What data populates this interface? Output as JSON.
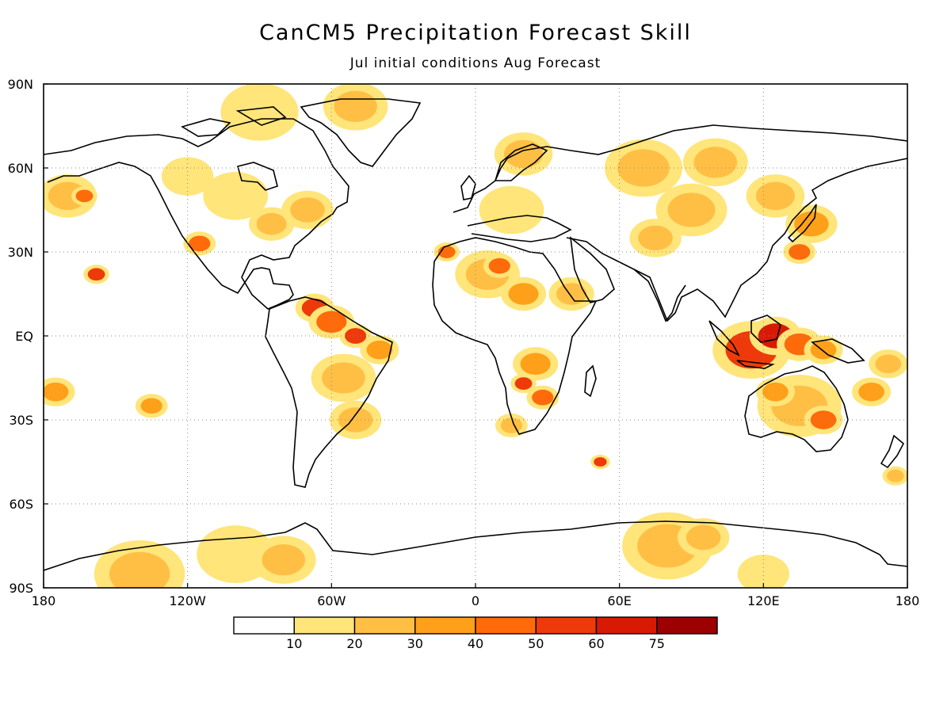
{
  "header": {
    "title": "CanCM5 Precipitation Forecast Skill",
    "subtitle": "Jul initial conditions   Aug Forecast"
  },
  "axes": {
    "lat_labels": [
      "90N",
      "60N",
      "30N",
      "EQ",
      "30S",
      "60S",
      "90S"
    ],
    "lon_labels": [
      "180",
      "120W",
      "60W",
      "0",
      "60E",
      "120E",
      "180"
    ]
  },
  "colorbar": {
    "colors": [
      "#ffffff",
      "#ffe57a",
      "#ffbf45",
      "#ffa01a",
      "#ff6b0a",
      "#ee3a0a",
      "#d81a05",
      "#9c0000"
    ],
    "labels": [
      "10",
      "20",
      "30",
      "40",
      "50",
      "60",
      "75"
    ]
  },
  "map_data": {
    "projection": "cylindrical-equidistant",
    "lon_range": [
      -180,
      180
    ],
    "lat_range": [
      -90,
      90
    ],
    "grid": true,
    "skill_blobs": [
      {
        "lon": -170,
        "lat": 50,
        "r": 9,
        "level": 1
      },
      {
        "lon": -163,
        "lat": 50,
        "r": 4,
        "level": 3
      },
      {
        "lon": -158,
        "lat": 22,
        "r": 4,
        "level": 4
      },
      {
        "lon": -175,
        "lat": -20,
        "r": 6,
        "level": 2
      },
      {
        "lon": -135,
        "lat": -25,
        "r": 5,
        "level": 2
      },
      {
        "lon": -120,
        "lat": 57,
        "r": 8,
        "level": 0
      },
      {
        "lon": -115,
        "lat": 33,
        "r": 5,
        "level": 3
      },
      {
        "lon": -100,
        "lat": 50,
        "r": 10,
        "level": 0
      },
      {
        "lon": -85,
        "lat": 40,
        "r": 7,
        "level": 1
      },
      {
        "lon": -70,
        "lat": 45,
        "r": 8,
        "level": 1
      },
      {
        "lon": -90,
        "lat": 80,
        "r": 12,
        "level": 0
      },
      {
        "lon": -50,
        "lat": 82,
        "r": 10,
        "level": 1
      },
      {
        "lon": -67,
        "lat": 10,
        "r": 6,
        "level": 4
      },
      {
        "lon": -60,
        "lat": 5,
        "r": 7,
        "level": 3
      },
      {
        "lon": -50,
        "lat": 0,
        "r": 5,
        "level": 4
      },
      {
        "lon": -40,
        "lat": -5,
        "r": 6,
        "level": 2
      },
      {
        "lon": -55,
        "lat": -15,
        "r": 10,
        "level": 1
      },
      {
        "lon": -50,
        "lat": -30,
        "r": 8,
        "level": 1
      },
      {
        "lon": -12,
        "lat": 30,
        "r": 4,
        "level": 3
      },
      {
        "lon": 5,
        "lat": 22,
        "r": 10,
        "level": 1
      },
      {
        "lon": 10,
        "lat": 25,
        "r": 5,
        "level": 3
      },
      {
        "lon": 20,
        "lat": 15,
        "r": 7,
        "level": 2
      },
      {
        "lon": 15,
        "lat": 45,
        "r": 10,
        "level": 0
      },
      {
        "lon": 20,
        "lat": 65,
        "r": 9,
        "level": 1
      },
      {
        "lon": 25,
        "lat": -10,
        "r": 7,
        "level": 2
      },
      {
        "lon": 20,
        "lat": -17,
        "r": 4,
        "level": 4
      },
      {
        "lon": 28,
        "lat": -22,
        "r": 5,
        "level": 3
      },
      {
        "lon": 15,
        "lat": -32,
        "r": 5,
        "level": 1
      },
      {
        "lon": 40,
        "lat": 15,
        "r": 7,
        "level": 1
      },
      {
        "lon": 52,
        "lat": -45,
        "r": 3,
        "level": 4
      },
      {
        "lon": 70,
        "lat": 60,
        "r": 12,
        "level": 1
      },
      {
        "lon": 100,
        "lat": 62,
        "r": 10,
        "level": 1
      },
      {
        "lon": 90,
        "lat": 45,
        "r": 11,
        "level": 1
      },
      {
        "lon": 75,
        "lat": 35,
        "r": 8,
        "level": 1
      },
      {
        "lon": 125,
        "lat": 50,
        "r": 9,
        "level": 1
      },
      {
        "lon": 140,
        "lat": 40,
        "r": 8,
        "level": 2
      },
      {
        "lon": 135,
        "lat": 30,
        "r": 5,
        "level": 3
      },
      {
        "lon": 115,
        "lat": -5,
        "r": 12,
        "level": 4
      },
      {
        "lon": 125,
        "lat": 0,
        "r": 8,
        "level": 5
      },
      {
        "lon": 135,
        "lat": -3,
        "r": 7,
        "level": 3
      },
      {
        "lon": 145,
        "lat": -5,
        "r": 6,
        "level": 2
      },
      {
        "lon": 135,
        "lat": -25,
        "r": 13,
        "level": 1
      },
      {
        "lon": 145,
        "lat": -30,
        "r": 6,
        "level": 3
      },
      {
        "lon": 125,
        "lat": -20,
        "r": 6,
        "level": 2
      },
      {
        "lon": 165,
        "lat": -20,
        "r": 6,
        "level": 2
      },
      {
        "lon": 172,
        "lat": -10,
        "r": 6,
        "level": 1
      },
      {
        "lon": 175,
        "lat": -50,
        "r": 4,
        "level": 1
      },
      {
        "lon": -140,
        "lat": -85,
        "r": 14,
        "level": 1
      },
      {
        "lon": -100,
        "lat": -78,
        "r": 12,
        "level": 0
      },
      {
        "lon": -80,
        "lat": -80,
        "r": 10,
        "level": 1
      },
      {
        "lon": 80,
        "lat": -75,
        "r": 14,
        "level": 1
      },
      {
        "lon": 95,
        "lat": -72,
        "r": 8,
        "level": 1
      },
      {
        "lon": 120,
        "lat": -85,
        "r": 8,
        "level": 0
      }
    ]
  }
}
